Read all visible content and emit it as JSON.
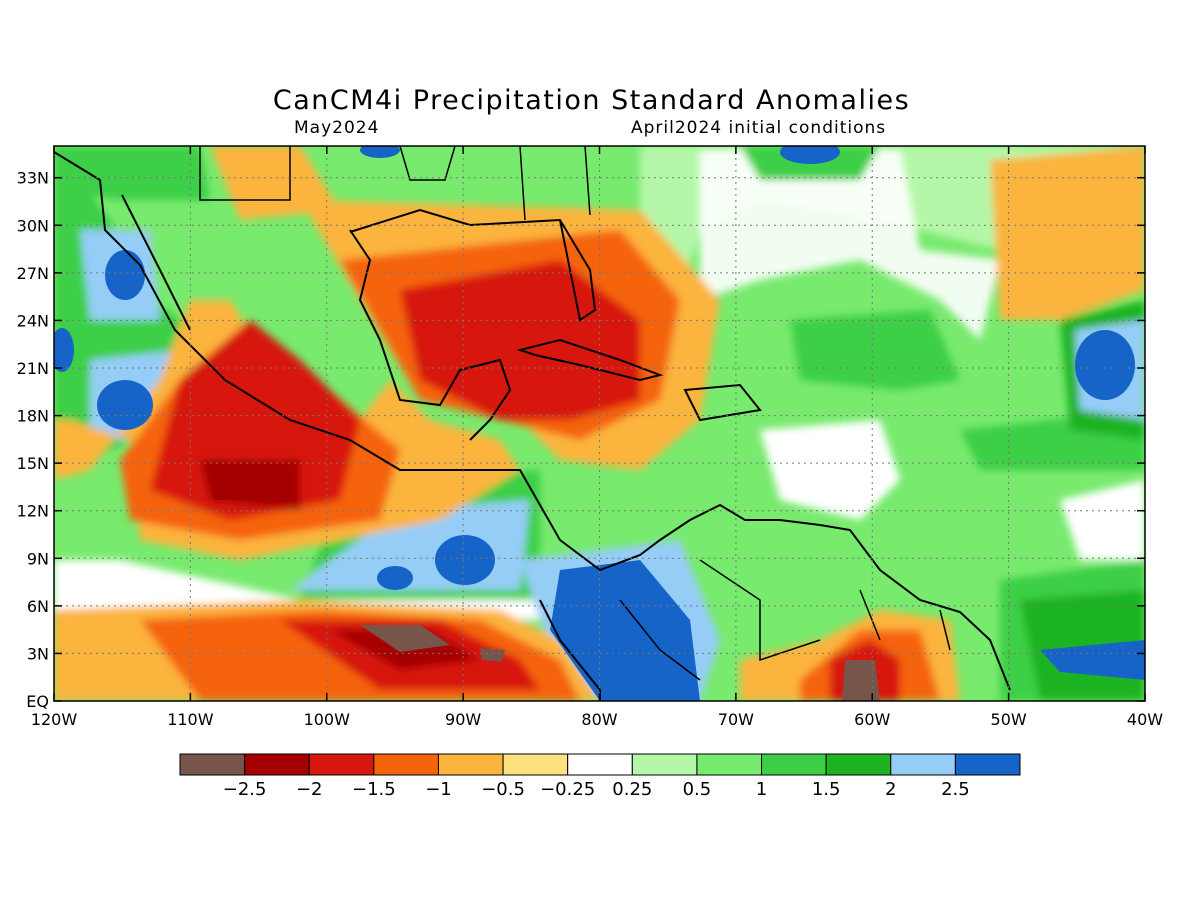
{
  "title": "CanCM4i Precipitation Standard Anomalies",
  "subtitle_left": "May2024",
  "subtitle_right": "April2024 initial conditions",
  "lat_labels": [
    "33N",
    "30N",
    "27N",
    "24N",
    "21N",
    "18N",
    "15N",
    "12N",
    "9N",
    "6N",
    "3N",
    "EQ"
  ],
  "lon_labels": [
    "120W",
    "110W",
    "100W",
    "90W",
    "80W",
    "70W",
    "60W",
    "50W",
    "40W"
  ],
  "colorbar": {
    "colors": [
      "#78554b",
      "#a50000",
      "#d7160f",
      "#f5640a",
      "#fbb43c",
      "#fde17e",
      "#ffffff",
      "#b5f7a8",
      "#78ea6e",
      "#3ccf46",
      "#1eb322",
      "#95cdf7",
      "#1664c8"
    ],
    "labels": [
      "-2.5",
      "-2",
      "-1.5",
      "-1",
      "-0.5",
      "-0.25",
      "0.25",
      "0.5",
      "1",
      "1.5",
      "2",
      "2.5"
    ]
  },
  "map_extent": {
    "lon": [
      -120,
      -40
    ],
    "lat": [
      0,
      35
    ]
  },
  "field_blobs": [
    {
      "lon": -115,
      "lat": 25,
      "level": 12
    },
    {
      "lon": -119,
      "lat": 21,
      "level": 12
    },
    {
      "lon": -113,
      "lat": 19,
      "level": 12
    },
    {
      "lon": -88,
      "lat": 8.5,
      "level": 12
    },
    {
      "lon": -95,
      "lat": 7.5,
      "level": 12
    },
    {
      "lon": -78,
      "lat": 4,
      "level": 12
    },
    {
      "lon": -44,
      "lat": 20,
      "level": 12
    },
    {
      "lon": -45,
      "lat": 3,
      "level": 12
    },
    {
      "lon": -64,
      "lat": 34,
      "level": 12
    },
    {
      "lon": -105,
      "lat": 13.5,
      "level": 1
    },
    {
      "lon": -103,
      "lat": 22,
      "level": 2
    },
    {
      "lon": -85,
      "lat": 21,
      "level": 1
    },
    {
      "lon": -92,
      "lat": 3.5,
      "level": 0
    },
    {
      "lon": -60,
      "lat": 1,
      "level": 0
    },
    {
      "lon": -77,
      "lat": 21,
      "level": 2
    }
  ]
}
